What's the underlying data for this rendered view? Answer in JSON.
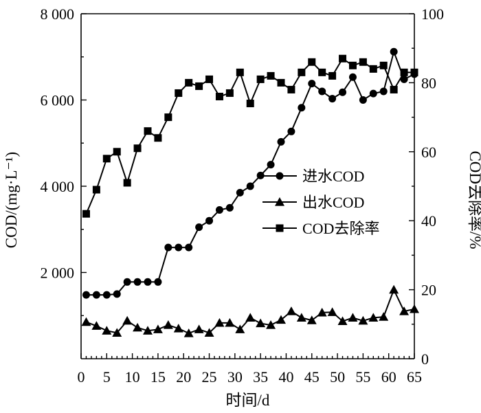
{
  "chart_data": {
    "type": "line",
    "xlabel": "时间/d",
    "ylabel_left": "COD/(mg·L⁻¹)",
    "ylabel_right": "COD去除率/%",
    "xlim": [
      0,
      65
    ],
    "ylim_left": [
      0,
      8000
    ],
    "ylim_right": [
      0,
      100
    ],
    "x_ticks": [
      "0",
      "5",
      "10",
      "15",
      "20",
      "25",
      "30",
      "35",
      "40",
      "45",
      "50",
      "55",
      "60",
      "65"
    ],
    "y_left_ticks": [
      {
        "value": 2000,
        "label": "2 000"
      },
      {
        "value": 4000,
        "label": "4 000"
      },
      {
        "value": 6000,
        "label": "6 000"
      },
      {
        "value": 8000,
        "label": "8 000"
      }
    ],
    "y_right_ticks": [
      "0",
      "20",
      "40",
      "60",
      "80",
      "100"
    ],
    "legend_position": "center-right",
    "series": [
      {
        "name": "进水COD",
        "axis": "left",
        "marker": "circle",
        "x": [
          1,
          3,
          5,
          7,
          9,
          11,
          13,
          15,
          17,
          19,
          21,
          23,
          25,
          27,
          29,
          31,
          33,
          35,
          37,
          39,
          41,
          43,
          45,
          47,
          49,
          51,
          53,
          55,
          57,
          59,
          61,
          63,
          65
        ],
        "values": [
          1480,
          1480,
          1480,
          1500,
          1780,
          1780,
          1780,
          1780,
          2580,
          2580,
          2580,
          3050,
          3200,
          3450,
          3500,
          3850,
          4000,
          4250,
          4500,
          5030,
          5270,
          5820,
          6380,
          6200,
          6030,
          6180,
          6530,
          6000,
          6150,
          6200,
          7120,
          6480,
          6600
        ]
      },
      {
        "name": "出水COD",
        "axis": "left",
        "marker": "triangle",
        "x": [
          1,
          3,
          5,
          7,
          9,
          11,
          13,
          15,
          17,
          19,
          21,
          23,
          25,
          27,
          29,
          31,
          33,
          35,
          37,
          39,
          41,
          43,
          45,
          47,
          49,
          51,
          53,
          55,
          57,
          59,
          61,
          63,
          65
        ],
        "values": [
          850,
          760,
          650,
          600,
          880,
          720,
          650,
          680,
          780,
          700,
          590,
          680,
          600,
          830,
          830,
          680,
          950,
          820,
          780,
          900,
          1100,
          950,
          890,
          1070,
          1080,
          870,
          950,
          880,
          950,
          970,
          1600,
          1100,
          1150
        ]
      },
      {
        "name": "COD去除率",
        "axis": "right",
        "marker": "square",
        "x": [
          1,
          3,
          5,
          7,
          9,
          11,
          13,
          15,
          17,
          19,
          21,
          23,
          25,
          27,
          29,
          31,
          33,
          35,
          37,
          39,
          41,
          43,
          45,
          47,
          49,
          51,
          53,
          55,
          57,
          59,
          61,
          63,
          65
        ],
        "values": [
          42,
          49,
          58,
          60,
          51,
          61,
          66,
          64,
          70,
          77,
          80,
          79,
          81,
          76,
          77,
          83,
          74,
          81,
          82,
          80,
          78,
          83,
          86,
          83,
          82,
          87,
          85,
          86,
          84,
          85,
          78,
          83,
          83
        ]
      }
    ]
  }
}
